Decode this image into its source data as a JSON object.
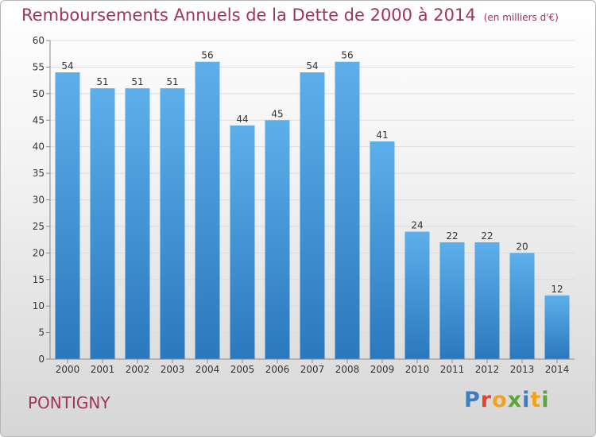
{
  "title": "Remboursements Annuels de la Dette de 2000 à 2014",
  "title_unit": "(en milliers d'€)",
  "commune": "PONTIGNY",
  "logo_text": "Proxiti",
  "colors": {
    "title": "#a3325c",
    "bar_top": "#5dafea",
    "bar_bottom": "#2b78bd"
  },
  "chart_data": {
    "type": "bar",
    "categories": [
      "2000",
      "2001",
      "2002",
      "2003",
      "2004",
      "2005",
      "2006",
      "2007",
      "2008",
      "2009",
      "2010",
      "2011",
      "2012",
      "2013",
      "2014"
    ],
    "values": [
      54,
      51,
      51,
      51,
      56,
      44,
      45,
      54,
      56,
      41,
      24,
      22,
      22,
      20,
      12
    ],
    "ylim": [
      0,
      60
    ],
    "yticks": [
      0,
      5,
      10,
      15,
      20,
      25,
      30,
      35,
      40,
      45,
      50,
      55,
      60
    ],
    "grid": true
  }
}
